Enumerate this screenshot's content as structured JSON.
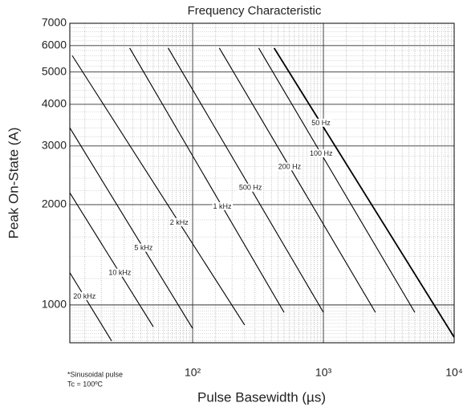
{
  "chart_data": {
    "type": "line",
    "title": "Frequency Characteristic",
    "x_label": "Pulse Basewidth (µs)",
    "y_label": "Peak On-State (A)",
    "notes": [
      "*Sinusoidal pulse",
      "Tc = 100ºC"
    ],
    "log_x": true,
    "log_y": true,
    "grid": true,
    "xlim": [
      11.5,
      10000
    ],
    "ylim": [
      770,
      7000
    ],
    "xticks": [
      {
        "value": 100,
        "label": "10²"
      },
      {
        "value": 1000,
        "label": "10³"
      },
      {
        "value": 10000,
        "label": "10⁴"
      }
    ],
    "yticks": [
      1000,
      2000,
      3000,
      4000,
      5000,
      6000,
      7000
    ],
    "series": [
      {
        "name": "50 Hz",
        "color": "#000000",
        "x": [
          420,
          10000
        ],
        "values": [
          5900,
          800
        ]
      },
      {
        "name": "100 Hz",
        "color": "#000000",
        "x": [
          320,
          5000
        ],
        "values": [
          5900,
          950
        ]
      },
      {
        "name": "200 Hz",
        "color": "#000000",
        "x": [
          160,
          2500
        ],
        "values": [
          5900,
          950
        ]
      },
      {
        "name": "500 Hz",
        "color": "#000000",
        "x": [
          65,
          1000
        ],
        "values": [
          5900,
          950
        ]
      },
      {
        "name": "1 kHz",
        "color": "#000000",
        "x": [
          33,
          500
        ],
        "values": [
          5900,
          950
        ]
      },
      {
        "name": "2 kHz",
        "color": "#000000",
        "x": [
          12,
          250
        ],
        "values": [
          5600,
          870
        ]
      },
      {
        "name": "5 kHz",
        "color": "#000000",
        "x": [
          11.5,
          100
        ],
        "values": [
          3400,
          850
        ]
      },
      {
        "name": "10 kHz",
        "color": "#000000",
        "x": [
          11.5,
          50
        ],
        "values": [
          2170,
          860
        ]
      },
      {
        "name": "20 kHz",
        "color": "#000000",
        "x": [
          11.5,
          24
        ],
        "values": [
          1250,
          780
        ]
      }
    ]
  }
}
